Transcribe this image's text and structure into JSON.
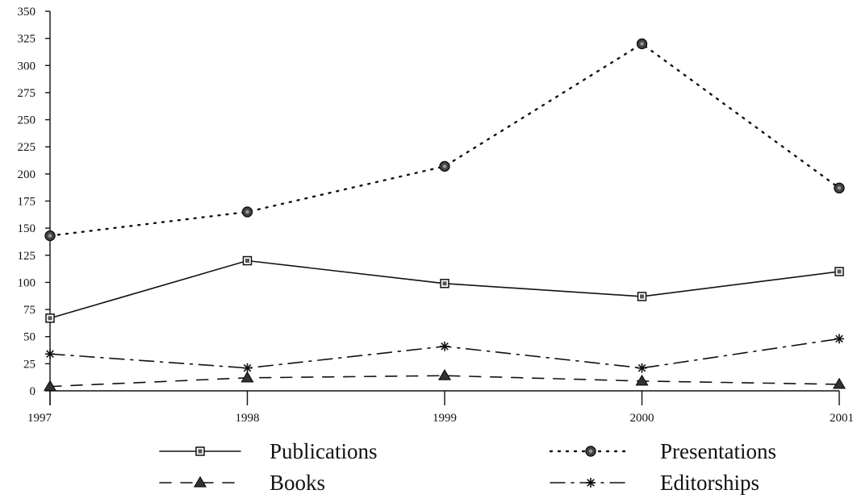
{
  "chart_data": {
    "type": "line",
    "title": "",
    "xlabel": "",
    "ylabel": "",
    "x": [
      "1997",
      "1998",
      "1999",
      "2000",
      "2001"
    ],
    "ylim": [
      0,
      350
    ],
    "yticks": [
      0,
      25,
      50,
      75,
      100,
      125,
      150,
      175,
      200,
      225,
      250,
      275,
      300,
      325,
      350
    ],
    "grid": false,
    "legend_position": "bottom",
    "series": [
      {
        "name": "Publications",
        "values": [
          67,
          120,
          99,
          87,
          110
        ],
        "line_style": "solid",
        "marker": "square"
      },
      {
        "name": "Books",
        "values": [
          4,
          12,
          14,
          9,
          6
        ],
        "line_style": "dashed",
        "marker": "triangle"
      },
      {
        "name": "Presentations",
        "values": [
          143,
          165,
          207,
          320,
          187
        ],
        "line_style": "dotted",
        "marker": "circle"
      },
      {
        "name": "Editorships",
        "values": [
          34,
          21,
          41,
          21,
          48
        ],
        "line_style": "dash-dot",
        "marker": "star"
      }
    ]
  }
}
